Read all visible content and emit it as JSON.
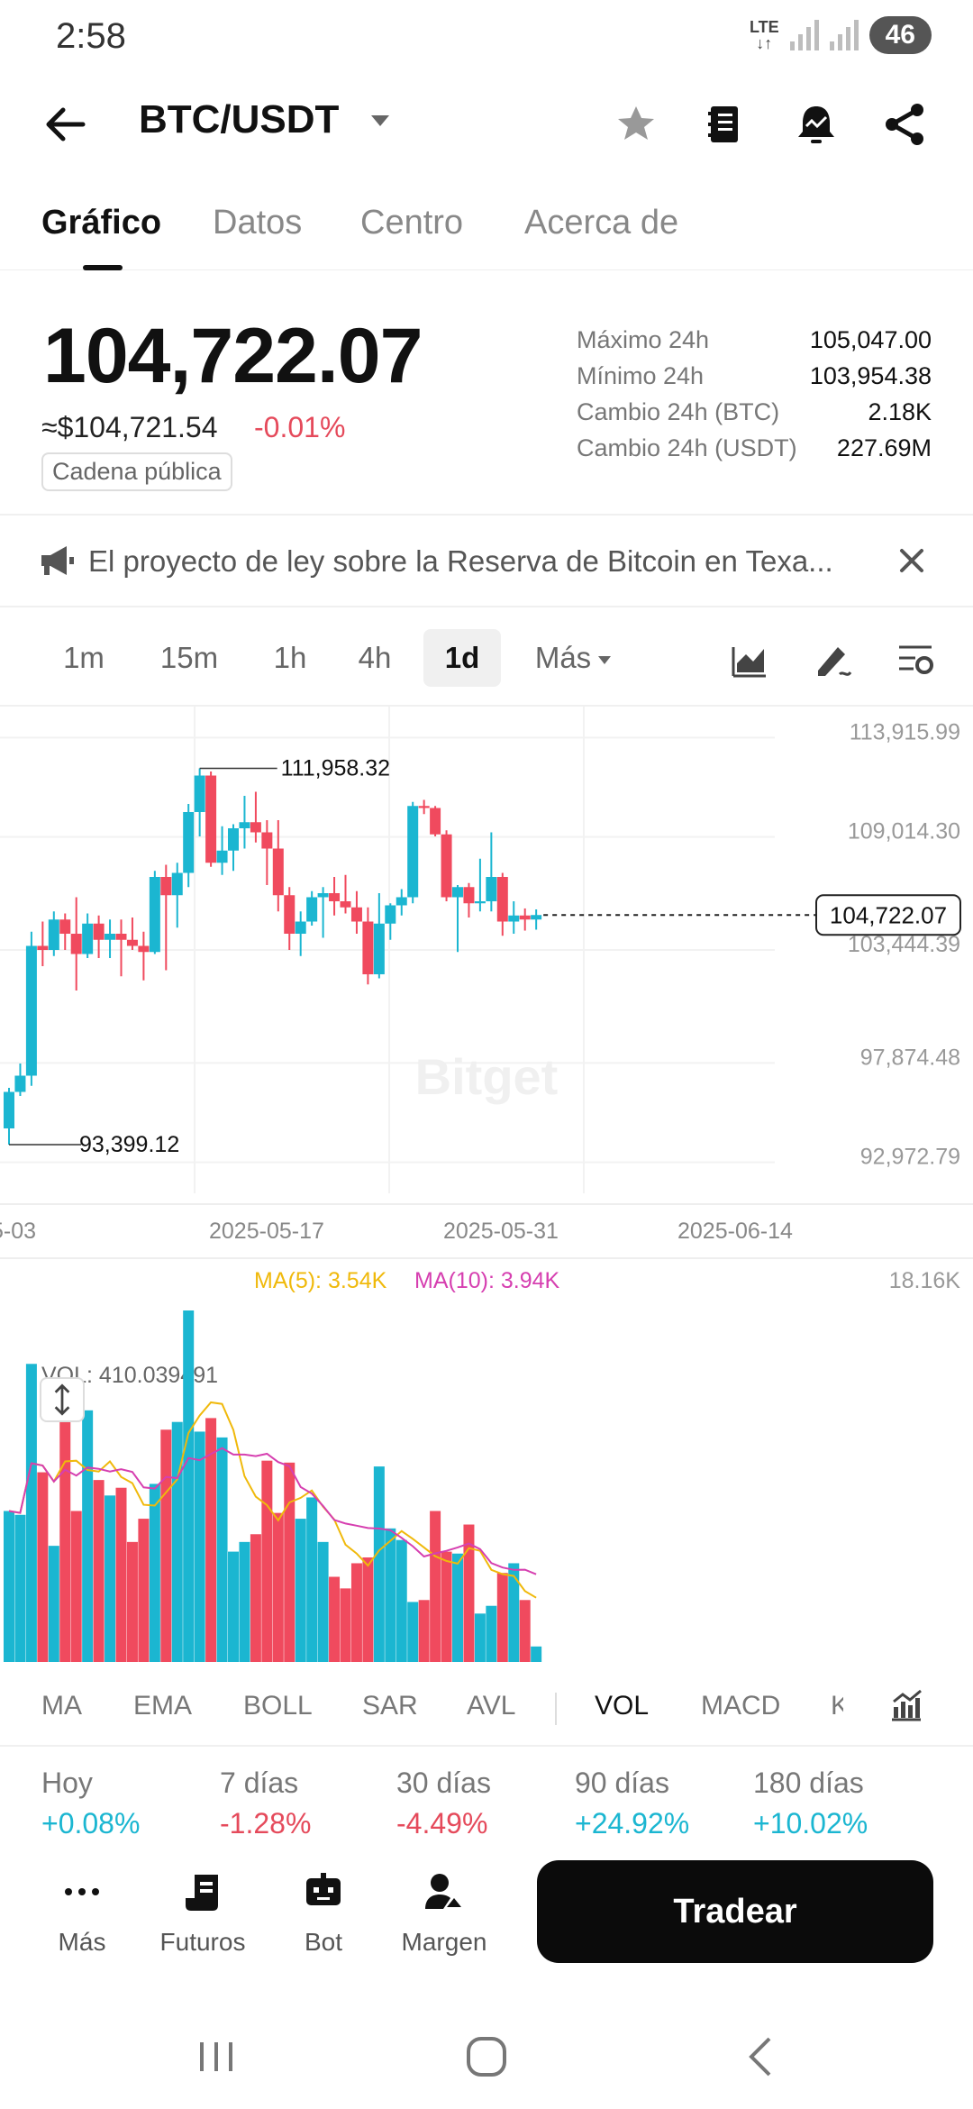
{
  "status": {
    "time": "2:58",
    "network": "LTE",
    "battery": "46"
  },
  "header": {
    "pair": "BTC/USDT"
  },
  "tabs": [
    {
      "label": "Gráfico"
    },
    {
      "label": "Datos"
    },
    {
      "label": "Centro"
    },
    {
      "label": "Acerca de"
    }
  ],
  "price": {
    "last": "104,722.07",
    "usd": "≈$104,721.54",
    "change": "-0.01%",
    "badge": "Cadena pública"
  },
  "stats": [
    {
      "label": "Máximo 24h",
      "value": "105,047.00"
    },
    {
      "label": "Mínimo 24h",
      "value": "103,954.38"
    },
    {
      "label": "Cambio 24h (BTC)",
      "value": "2.18K"
    },
    {
      "label": "Cambio 24h (USDT)",
      "value": "227.69M"
    }
  ],
  "announcement": "El proyecto de ley sobre la Reserva de Bitcoin en Texa...",
  "intervals": [
    "1m",
    "15m",
    "1h",
    "4h",
    "1d"
  ],
  "interval_more": "Más",
  "chart_data": {
    "type": "candlestick",
    "watermark": "Bitget",
    "y_ticks": [
      "113,915.99",
      "109,014.30",
      "103,444.39",
      "97,874.48",
      "92,972.79"
    ],
    "ylim": [
      91000,
      115000
    ],
    "x_ticks": [
      "5-03",
      "2025-05-17",
      "2025-05-31",
      "2025-06-14"
    ],
    "current_price_label": "104,722.07",
    "current_price": 104722.07,
    "high_label": "111,958.32",
    "low_label": "93,399.12",
    "candles": [
      {
        "o": 94200,
        "h": 96200,
        "l": 93399,
        "c": 96000
      },
      {
        "o": 96000,
        "h": 97400,
        "l": 95800,
        "c": 96800
      },
      {
        "o": 96800,
        "h": 103900,
        "l": 96300,
        "c": 103200
      },
      {
        "o": 103200,
        "h": 104400,
        "l": 102200,
        "c": 103000
      },
      {
        "o": 103000,
        "h": 104900,
        "l": 102700,
        "c": 104500
      },
      {
        "o": 104500,
        "h": 104800,
        "l": 103000,
        "c": 103800
      },
      {
        "o": 103800,
        "h": 105600,
        "l": 101000,
        "c": 102800
      },
      {
        "o": 102800,
        "h": 104800,
        "l": 102600,
        "c": 104300
      },
      {
        "o": 104300,
        "h": 104700,
        "l": 102600,
        "c": 103500
      },
      {
        "o": 103500,
        "h": 104500,
        "l": 102600,
        "c": 103800
      },
      {
        "o": 103800,
        "h": 104500,
        "l": 101700,
        "c": 103500
      },
      {
        "o": 103500,
        "h": 104600,
        "l": 103000,
        "c": 103200
      },
      {
        "o": 103200,
        "h": 103900,
        "l": 101500,
        "c": 102900
      },
      {
        "o": 102900,
        "h": 106900,
        "l": 102800,
        "c": 106600
      },
      {
        "o": 106600,
        "h": 107200,
        "l": 102000,
        "c": 105700
      },
      {
        "o": 105700,
        "h": 107300,
        "l": 104100,
        "c": 106800
      },
      {
        "o": 106800,
        "h": 110200,
        "l": 106100,
        "c": 109800
      },
      {
        "o": 109800,
        "h": 111958,
        "l": 108600,
        "c": 111600
      },
      {
        "o": 111600,
        "h": 111800,
        "l": 107100,
        "c": 107300
      },
      {
        "o": 107300,
        "h": 109100,
        "l": 106700,
        "c": 107900
      },
      {
        "o": 107900,
        "h": 109200,
        "l": 106900,
        "c": 109000
      },
      {
        "o": 109000,
        "h": 110600,
        "l": 108000,
        "c": 109300
      },
      {
        "o": 109300,
        "h": 110800,
        "l": 108300,
        "c": 108800
      },
      {
        "o": 108800,
        "h": 109400,
        "l": 106200,
        "c": 108000
      },
      {
        "o": 108000,
        "h": 109400,
        "l": 104900,
        "c": 105700
      },
      {
        "o": 105700,
        "h": 106100,
        "l": 103000,
        "c": 103800
      },
      {
        "o": 103800,
        "h": 104900,
        "l": 102700,
        "c": 104400
      },
      {
        "o": 104400,
        "h": 105900,
        "l": 104200,
        "c": 105600
      },
      {
        "o": 105600,
        "h": 106100,
        "l": 103600,
        "c": 105800
      },
      {
        "o": 105800,
        "h": 106600,
        "l": 104700,
        "c": 105400
      },
      {
        "o": 105400,
        "h": 106700,
        "l": 104800,
        "c": 105100
      },
      {
        "o": 105100,
        "h": 105900,
        "l": 103800,
        "c": 104400
      },
      {
        "o": 104400,
        "h": 105100,
        "l": 101300,
        "c": 101800
      },
      {
        "o": 101800,
        "h": 105800,
        "l": 101600,
        "c": 104300
      },
      {
        "o": 104300,
        "h": 105300,
        "l": 103500,
        "c": 105200
      },
      {
        "o": 105200,
        "h": 106000,
        "l": 104700,
        "c": 105600
      },
      {
        "o": 105600,
        "h": 110300,
        "l": 105300,
        "c": 110100
      },
      {
        "o": 110100,
        "h": 110400,
        "l": 109700,
        "c": 110000
      },
      {
        "o": 110000,
        "h": 110100,
        "l": 108600,
        "c": 108700
      },
      {
        "o": 108700,
        "h": 108900,
        "l": 105400,
        "c": 105600
      },
      {
        "o": 105600,
        "h": 106200,
        "l": 102900,
        "c": 106100
      },
      {
        "o": 106100,
        "h": 106300,
        "l": 104600,
        "c": 105300
      },
      {
        "o": 105300,
        "h": 107500,
        "l": 104900,
        "c": 105400
      },
      {
        "o": 105400,
        "h": 108800,
        "l": 104900,
        "c": 106600
      },
      {
        "o": 106600,
        "h": 106800,
        "l": 103700,
        "c": 104400
      },
      {
        "o": 104400,
        "h": 105400,
        "l": 103800,
        "c": 104700
      },
      {
        "o": 104700,
        "h": 105047,
        "l": 103954,
        "c": 104500
      },
      {
        "o": 104500,
        "h": 105000,
        "l": 104000,
        "c": 104722
      }
    ]
  },
  "volume": {
    "vol_label": "VOL: 410.039491",
    "ma5_label": "MA(5): 3.54K",
    "ma10_label": "MA(10): 3.94K",
    "max_label": "18.16K",
    "ymax": 18160,
    "values": [
      7800,
      7600,
      15400,
      9800,
      6000,
      13000,
      7800,
      13000,
      9400,
      8600,
      9000,
      6200,
      7400,
      9200,
      12000,
      12400,
      18160,
      11900,
      12600,
      11600,
      5700,
      6200,
      6600,
      10400,
      7700,
      10300,
      7400,
      8500,
      6200,
      4400,
      3800,
      5100,
      5400,
      10100,
      6900,
      6300,
      3100,
      3200,
      7800,
      5700,
      5600,
      7100,
      2500,
      2900,
      4600,
      5100,
      3200,
      800
    ],
    "ma5_color": "#f0b90b",
    "ma10_color": "#d63fb0",
    "up_color": "#1bb6d1",
    "down_color": "#f04a5e"
  },
  "indicators": [
    "MA",
    "EMA",
    "BOLL",
    "SAR",
    "AVL",
    "VOL",
    "MACD",
    "K"
  ],
  "performance": [
    {
      "label": "Hoy",
      "value": "+0.08%",
      "dir": "up"
    },
    {
      "label": "7 días",
      "value": "-1.28%",
      "dir": "down"
    },
    {
      "label": "30 días",
      "value": "-4.49%",
      "dir": "down"
    },
    {
      "label": "90 días",
      "value": "+24.92%",
      "dir": "up"
    },
    {
      "label": "180 días",
      "value": "+10.02%",
      "dir": "up"
    }
  ],
  "bottom_bar": [
    {
      "label": "Más",
      "icon": "dots-icon"
    },
    {
      "label": "Futuros",
      "icon": "futures-icon"
    },
    {
      "label": "Bot",
      "icon": "bot-icon"
    },
    {
      "label": "Margen",
      "icon": "margin-icon"
    }
  ],
  "trade_label": "Tradear"
}
